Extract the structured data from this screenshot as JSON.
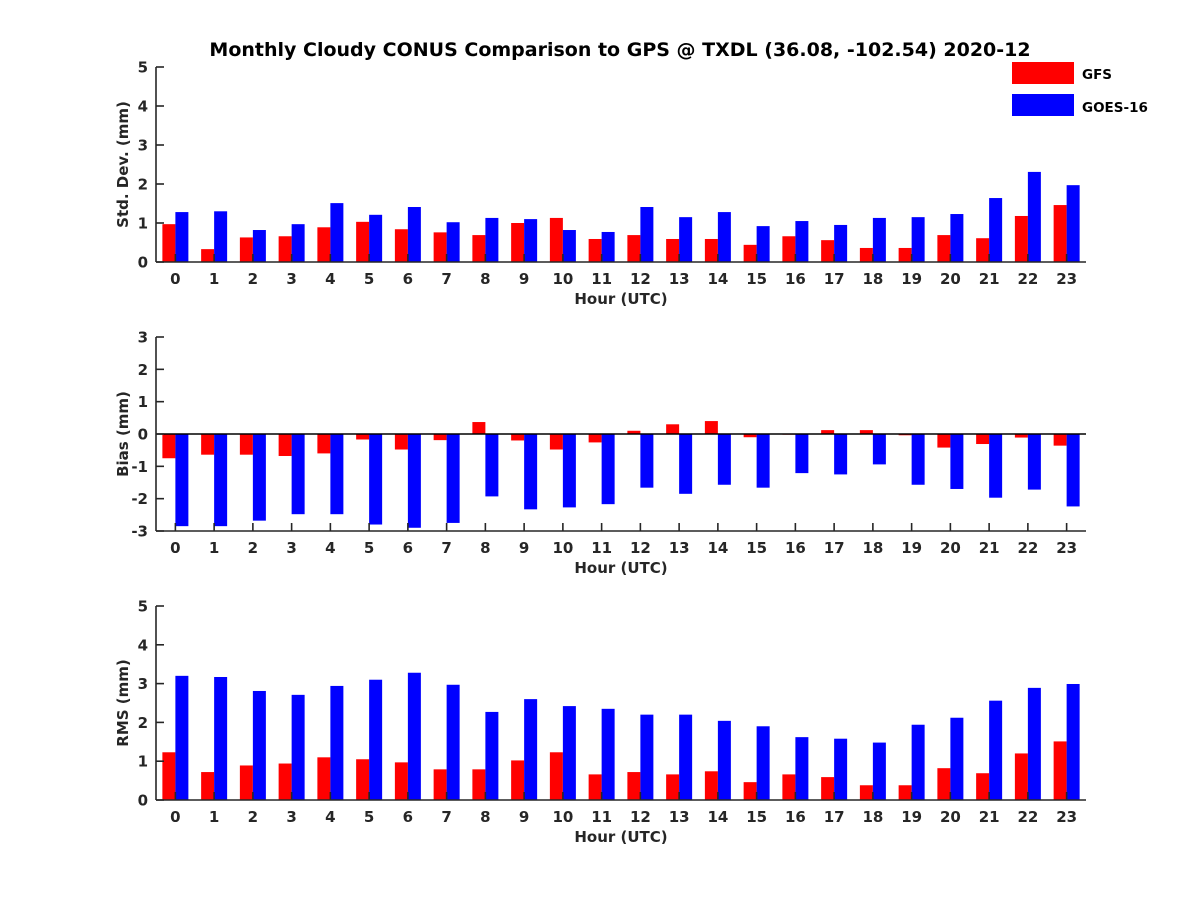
{
  "title": "Monthly Cloudy CONUS Comparison to GPS @ TXDL (36.08, -102.54) 2020-12",
  "legend": [
    {
      "name": "GFS",
      "color": "#ff0000"
    },
    {
      "name": "GOES-16",
      "color": "#0000ff"
    }
  ],
  "chart_data": [
    {
      "type": "bar",
      "id": "std",
      "xlabel": "Hour (UTC)",
      "ylabel": "Std. Dev. (mm)",
      "ylim": [
        0,
        5
      ],
      "yticks": [
        0,
        1,
        2,
        3,
        4,
        5
      ],
      "categories": [
        "0",
        "1",
        "2",
        "3",
        "4",
        "5",
        "6",
        "7",
        "8",
        "9",
        "10",
        "11",
        "12",
        "13",
        "14",
        "15",
        "16",
        "17",
        "18",
        "19",
        "20",
        "21",
        "22",
        "23"
      ],
      "series": [
        {
          "name": "GFS",
          "color": "#ff0000",
          "values": [
            0.97,
            0.33,
            0.63,
            0.66,
            0.89,
            1.03,
            0.84,
            0.76,
            0.69,
            1.0,
            1.13,
            0.59,
            0.69,
            0.59,
            0.59,
            0.44,
            0.66,
            0.56,
            0.36,
            0.36,
            0.69,
            0.61,
            1.18,
            1.46
          ]
        },
        {
          "name": "GOES-16",
          "color": "#0000ff",
          "values": [
            1.28,
            1.3,
            0.82,
            0.97,
            1.51,
            1.21,
            1.41,
            1.02,
            1.13,
            1.1,
            0.82,
            0.77,
            1.41,
            1.15,
            1.28,
            0.92,
            1.05,
            0.95,
            1.13,
            1.15,
            1.23,
            1.64,
            2.31,
            1.97
          ]
        }
      ]
    },
    {
      "type": "bar",
      "id": "bias",
      "xlabel": "Hour (UTC)",
      "ylabel": "Bias (mm)",
      "ylim": [
        -3,
        3
      ],
      "yticks": [
        -3,
        -2,
        -1,
        0,
        1,
        2,
        3
      ],
      "categories": [
        "0",
        "1",
        "2",
        "3",
        "4",
        "5",
        "6",
        "7",
        "8",
        "9",
        "10",
        "11",
        "12",
        "13",
        "14",
        "15",
        "16",
        "17",
        "18",
        "19",
        "20",
        "21",
        "22",
        "23"
      ],
      "series": [
        {
          "name": "GFS",
          "color": "#ff0000",
          "values": [
            -0.75,
            -0.64,
            -0.64,
            -0.68,
            -0.6,
            -0.17,
            -0.48,
            -0.19,
            0.37,
            -0.2,
            -0.48,
            -0.26,
            0.1,
            0.3,
            0.4,
            -0.1,
            -0.02,
            0.12,
            0.12,
            -0.04,
            -0.42,
            -0.31,
            -0.11,
            -0.36
          ]
        },
        {
          "name": "GOES-16",
          "color": "#0000ff",
          "values": [
            -2.85,
            -2.85,
            -2.68,
            -2.48,
            -2.48,
            -2.8,
            -2.9,
            -2.75,
            -1.93,
            -2.33,
            -2.27,
            -2.17,
            -1.66,
            -1.85,
            -1.57,
            -1.66,
            -1.21,
            -1.25,
            -0.94,
            -1.57,
            -1.7,
            -1.97,
            -1.72,
            -2.24
          ]
        }
      ]
    },
    {
      "type": "bar",
      "id": "rms",
      "xlabel": "Hour (UTC)",
      "ylabel": "RMS (mm)",
      "ylim": [
        0,
        5
      ],
      "yticks": [
        0,
        1,
        2,
        3,
        4,
        5
      ],
      "categories": [
        "0",
        "1",
        "2",
        "3",
        "4",
        "5",
        "6",
        "7",
        "8",
        "9",
        "10",
        "11",
        "12",
        "13",
        "14",
        "15",
        "16",
        "17",
        "18",
        "19",
        "20",
        "21",
        "22",
        "23"
      ],
      "series": [
        {
          "name": "GFS",
          "color": "#ff0000",
          "values": [
            1.23,
            0.72,
            0.89,
            0.94,
            1.1,
            1.05,
            0.97,
            0.79,
            0.79,
            1.02,
            1.23,
            0.66,
            0.72,
            0.66,
            0.74,
            0.46,
            0.66,
            0.59,
            0.38,
            0.38,
            0.82,
            0.69,
            1.2,
            1.51
          ]
        },
        {
          "name": "GOES-16",
          "color": "#0000ff",
          "values": [
            3.2,
            3.17,
            2.81,
            2.71,
            2.94,
            3.1,
            3.28,
            2.97,
            2.27,
            2.6,
            2.42,
            2.35,
            2.2,
            2.2,
            2.04,
            1.9,
            1.62,
            1.58,
            1.48,
            1.94,
            2.12,
            2.56,
            2.89,
            2.99
          ]
        }
      ]
    }
  ]
}
